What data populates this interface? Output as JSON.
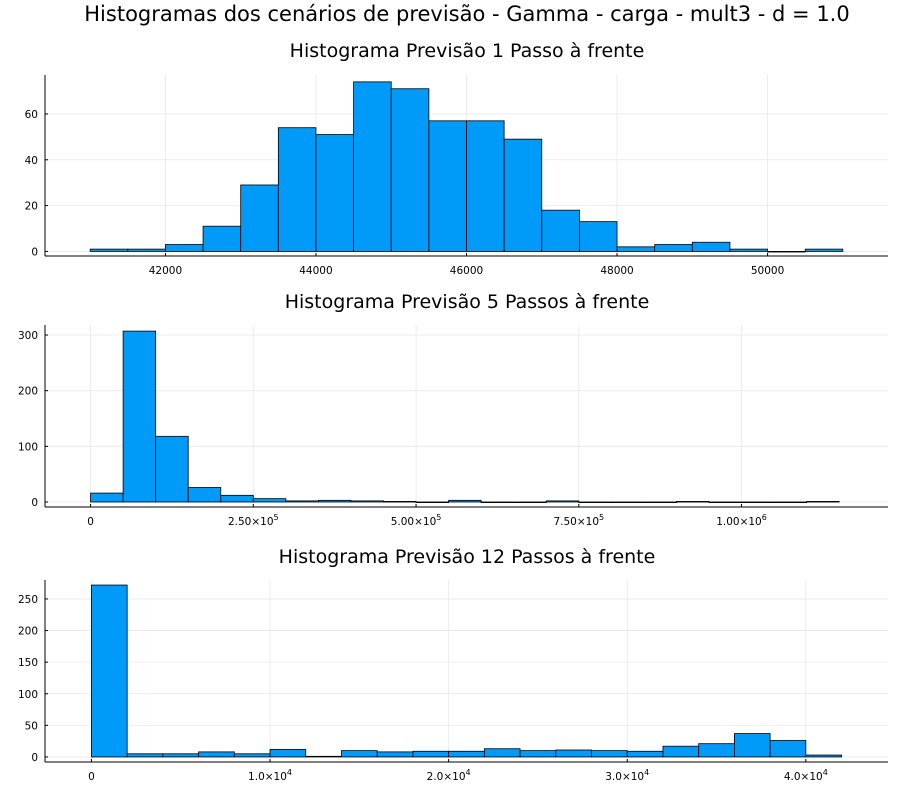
{
  "figure_title": "Histogramas dos cenários de previsão - Gamma - carga - mult3 - d = 1.0",
  "colors": {
    "bar": "#009af9",
    "edge": "#000000",
    "grid": "#e8e8e8"
  },
  "chart_data": [
    {
      "type": "histogram",
      "title": "Histograma Previsão 1 Passo à frente",
      "bin_edges": [
        41000,
        41500,
        42000,
        42500,
        43000,
        43500,
        44000,
        44500,
        45000,
        45500,
        46000,
        46500,
        47000,
        47500,
        48000,
        48500,
        49000,
        49500,
        50000,
        50500,
        51000
      ],
      "counts": [
        1,
        1,
        3,
        11,
        29,
        54,
        51,
        74,
        71,
        57,
        57,
        49,
        18,
        13,
        2,
        3,
        4,
        1,
        0,
        1
      ],
      "xlim": [
        40400,
        51600
      ],
      "ylim": [
        -2,
        77
      ],
      "xticks": [
        42000,
        44000,
        46000,
        48000,
        50000
      ],
      "xtick_labels": [
        "42000",
        "44000",
        "46000",
        "48000",
        "50000"
      ],
      "yticks": [
        0,
        20,
        40,
        60
      ],
      "ytick_labels": [
        "0",
        "20",
        "40",
        "60"
      ],
      "grid": true
    },
    {
      "type": "histogram",
      "title": "Histograma Previsão 5 Passos à frente",
      "bin_edges": [
        0,
        50000,
        100000,
        150000,
        200000,
        250000,
        300000,
        350000,
        400000,
        450000,
        500000,
        550000,
        600000,
        650000,
        700000,
        750000,
        800000,
        850000,
        900000,
        950000,
        1000000,
        1050000,
        1100000,
        1150000
      ],
      "counts": [
        16,
        307,
        118,
        26,
        12,
        6,
        2,
        3,
        2,
        1,
        0,
        3,
        0,
        0,
        2,
        0,
        0,
        0,
        1,
        0,
        0,
        0,
        1
      ],
      "xlim": [
        -70000,
        1225000
      ],
      "ylim": [
        -9,
        318
      ],
      "xticks": [
        0,
        250000,
        500000,
        750000,
        1000000
      ],
      "xtick_labels": [
        {
          "mant": "0",
          "exp": ""
        },
        {
          "mant": "2.50×10",
          "exp": "5"
        },
        {
          "mant": "5.00×10",
          "exp": "5"
        },
        {
          "mant": "7.50×10",
          "exp": "5"
        },
        {
          "mant": "1.00×10",
          "exp": "6"
        }
      ],
      "yticks": [
        0,
        100,
        200,
        300
      ],
      "ytick_labels": [
        "0",
        "100",
        "200",
        "300"
      ],
      "grid": true
    },
    {
      "type": "histogram",
      "title": "Histograma Previsão 12 Passos à frente",
      "bin_edges": [
        0,
        2000,
        4000,
        6000,
        8000,
        10000,
        12000,
        14000,
        16000,
        18000,
        20000,
        22000,
        24000,
        26000,
        28000,
        30000,
        32000,
        34000,
        36000,
        38000,
        40000,
        42000
      ],
      "counts": [
        272,
        5,
        5,
        8,
        5,
        12,
        1,
        10,
        8,
        9,
        9,
        13,
        10,
        11,
        10,
        9,
        17,
        21,
        37,
        26,
        3
      ],
      "xlim": [
        -2600,
        44600
      ],
      "ylim": [
        -8,
        280
      ],
      "xticks": [
        0,
        10000,
        20000,
        30000,
        40000
      ],
      "xtick_labels": [
        {
          "mant": "0",
          "exp": ""
        },
        {
          "mant": "1.0×10",
          "exp": "4"
        },
        {
          "mant": "2.0×10",
          "exp": "4"
        },
        {
          "mant": "3.0×10",
          "exp": "4"
        },
        {
          "mant": "4.0×10",
          "exp": "4"
        }
      ],
      "yticks": [
        0,
        50,
        100,
        150,
        200,
        250
      ],
      "ytick_labels": [
        "0",
        "50",
        "100",
        "150",
        "200",
        "250"
      ],
      "grid": true
    }
  ]
}
